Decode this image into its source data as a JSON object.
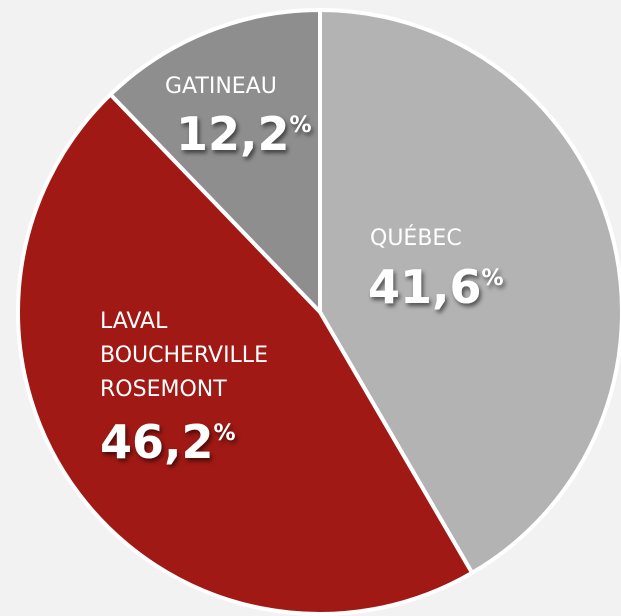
{
  "chart_data": {
    "type": "pie",
    "categories": [
      "QUÉBEC",
      "LAVAL\nBOUCHERVILLE\nROSEMONT",
      "GATINEAU"
    ],
    "values": [
      41.6,
      46.2,
      12.2
    ],
    "value_labels": [
      "41,6%",
      "46,2%",
      "12,2%"
    ],
    "colors": [
      "#b3b3b3",
      "#a01914",
      "#8e8e8e"
    ]
  }
}
